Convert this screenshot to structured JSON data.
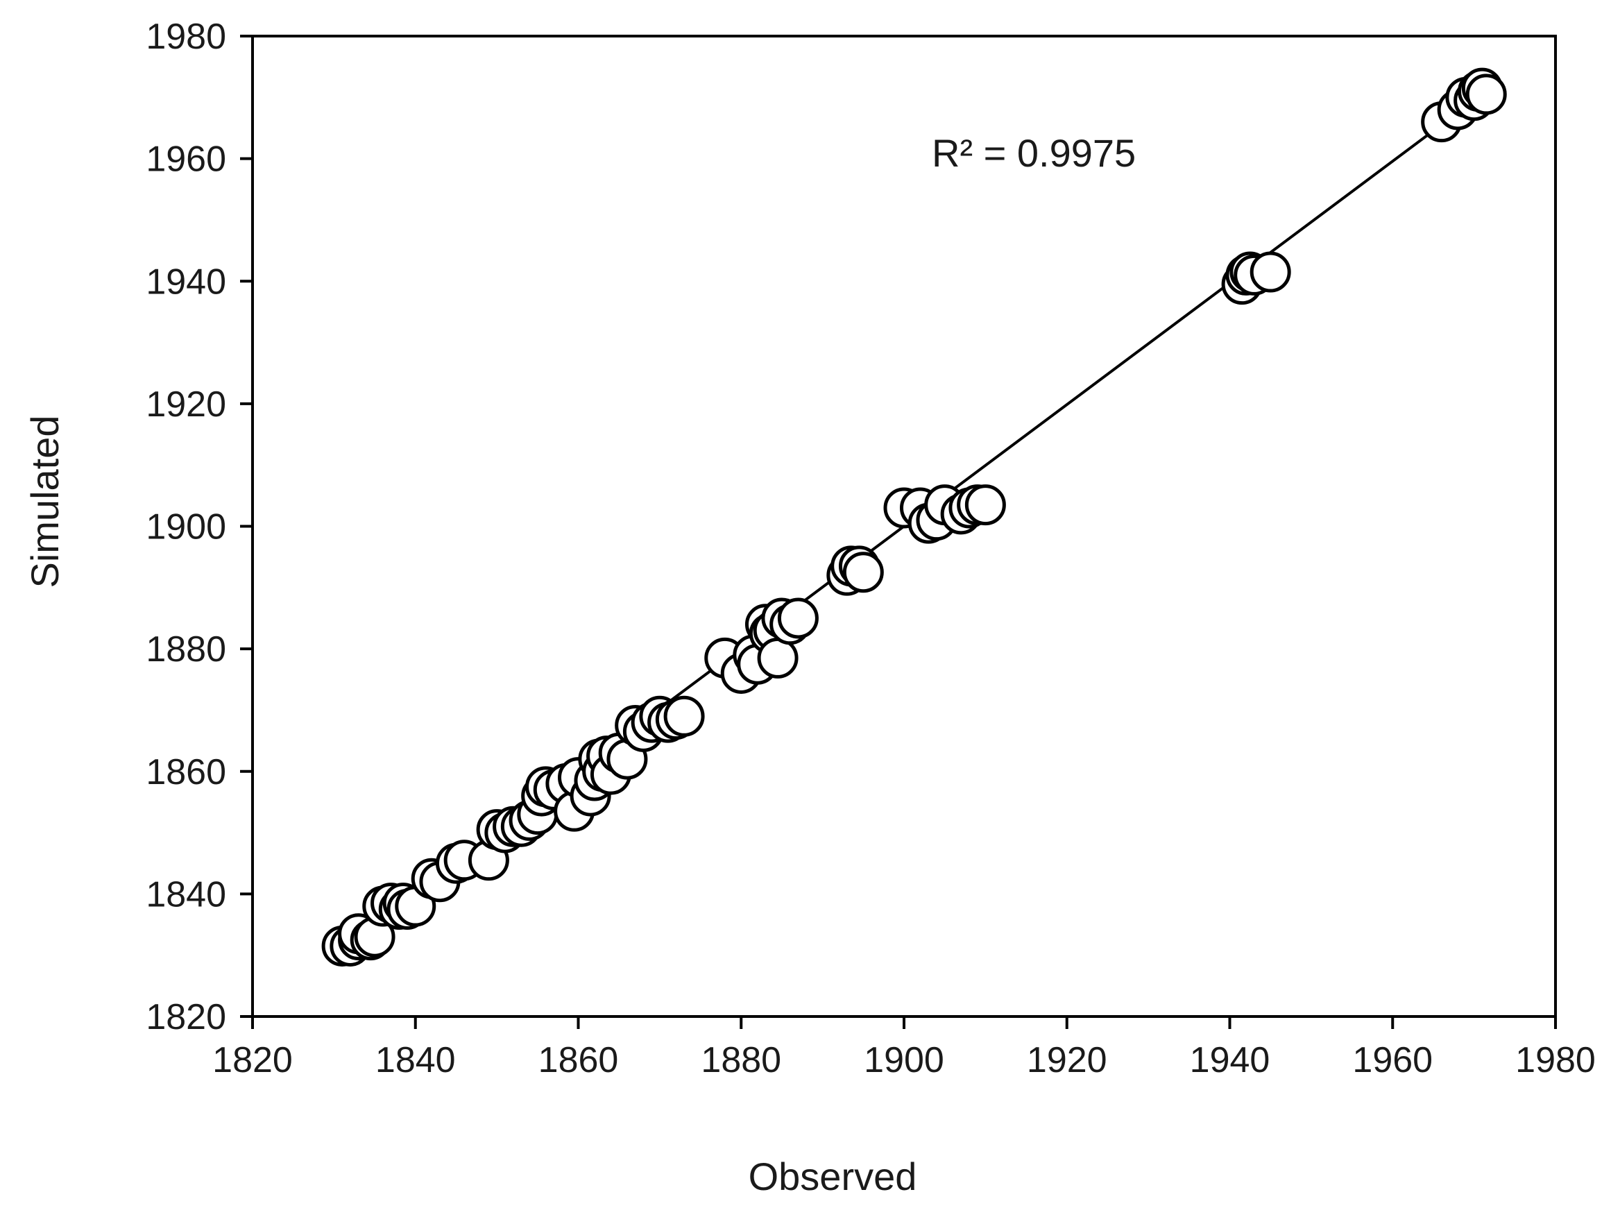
{
  "chart_data": {
    "type": "scatter",
    "xlabel": "Observed",
    "ylabel": "Simulated",
    "xlim": [
      1820,
      1980
    ],
    "ylim": [
      1820,
      1980
    ],
    "xticks": [
      1820,
      1840,
      1860,
      1880,
      1900,
      1920,
      1940,
      1960,
      1980
    ],
    "yticks": [
      1820,
      1840,
      1860,
      1880,
      1900,
      1920,
      1940,
      1960,
      1980
    ],
    "grid": false,
    "legend": "none",
    "annotation": "R² = 0.9975",
    "trendline": {
      "x": [
        1831,
        1971
      ],
      "y": [
        1831.5,
        1970.5
      ]
    },
    "series": [
      {
        "points": [
          [
            1831,
            1831.5
          ],
          [
            1832,
            1831.5
          ],
          [
            1833,
            1832.5
          ],
          [
            1833,
            1833.5
          ],
          [
            1834.5,
            1832.5
          ],
          [
            1835,
            1833
          ],
          [
            1836,
            1838
          ],
          [
            1837,
            1838.5
          ],
          [
            1838,
            1837.5
          ],
          [
            1838.5,
            1838.5
          ],
          [
            1839,
            1837.5
          ],
          [
            1840,
            1838
          ],
          [
            1842,
            1842.5
          ],
          [
            1843,
            1842
          ],
          [
            1845,
            1845
          ],
          [
            1846,
            1845.5
          ],
          [
            1849,
            1845.5
          ],
          [
            1850,
            1850.5
          ],
          [
            1851,
            1850
          ],
          [
            1852,
            1851
          ],
          [
            1853,
            1851
          ],
          [
            1854,
            1852
          ],
          [
            1855,
            1853
          ],
          [
            1855.5,
            1856
          ],
          [
            1856,
            1857.5
          ],
          [
            1857,
            1857
          ],
          [
            1858.5,
            1858
          ],
          [
            1859.5,
            1853.5
          ],
          [
            1860,
            1859
          ],
          [
            1861.5,
            1856
          ],
          [
            1862,
            1858.5
          ],
          [
            1862.5,
            1862
          ],
          [
            1863,
            1860
          ],
          [
            1863.5,
            1862.5
          ],
          [
            1864,
            1859.5
          ],
          [
            1865,
            1863
          ],
          [
            1866,
            1862
          ],
          [
            1867,
            1867.5
          ],
          [
            1868,
            1866.5
          ],
          [
            1869,
            1868
          ],
          [
            1870,
            1869
          ],
          [
            1871,
            1868
          ],
          [
            1872,
            1868.5
          ],
          [
            1873,
            1869
          ],
          [
            1878,
            1878.5
          ],
          [
            1880,
            1876
          ],
          [
            1881.5,
            1879
          ],
          [
            1882,
            1877.5
          ],
          [
            1883,
            1884
          ],
          [
            1883.5,
            1882.5
          ],
          [
            1884,
            1883
          ],
          [
            1884.5,
            1878.5
          ],
          [
            1885,
            1885
          ],
          [
            1886,
            1884
          ],
          [
            1887,
            1885
          ],
          [
            1893,
            1892
          ],
          [
            1893.5,
            1893.5
          ],
          [
            1894.5,
            1893.5
          ],
          [
            1895,
            1892.5
          ],
          [
            1900,
            1903
          ],
          [
            1902,
            1903
          ],
          [
            1903,
            1900.5
          ],
          [
            1904,
            1901
          ],
          [
            1905,
            1903.5
          ],
          [
            1907,
            1902
          ],
          [
            1908,
            1903
          ],
          [
            1909,
            1903.5
          ],
          [
            1910,
            1903.5
          ],
          [
            1941.5,
            1939.5
          ],
          [
            1942,
            1941
          ],
          [
            1942.5,
            1941.5
          ],
          [
            1943,
            1941
          ],
          [
            1945,
            1941.5
          ],
          [
            1966,
            1966
          ],
          [
            1968,
            1968
          ],
          [
            1969,
            1970
          ],
          [
            1970,
            1969.5
          ],
          [
            1970.5,
            1971
          ],
          [
            1971,
            1971.5
          ],
          [
            1971.5,
            1970.5
          ]
        ]
      }
    ]
  }
}
